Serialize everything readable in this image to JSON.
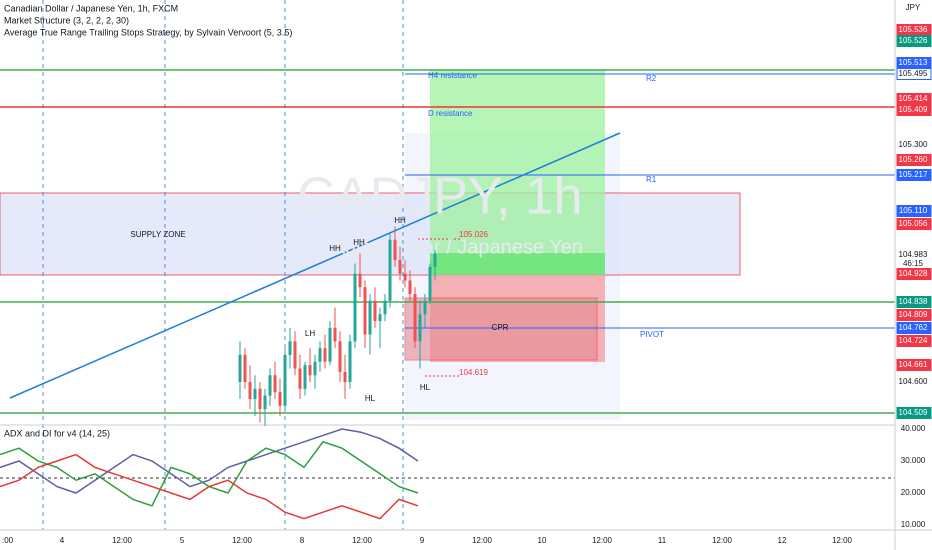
{
  "header": {
    "title": "Canadian Dollar / Japanese Yen, 1h, FXCM",
    "studies": [
      "Market Structure (3, 2, 2, 2, 30)",
      "Average True Range Trailing Stops Strategy, by Sylvain Vervoort (5, 3.5)"
    ]
  },
  "watermark": {
    "symbol": "CADJPY, 1h",
    "name": "Canadian Dollar / Japanese Yen"
  },
  "annotations": [
    "SUPPLY ZONE",
    "H4 resistance",
    "D resistance",
    "R2",
    "R1",
    "PIVOT",
    "CPR",
    "105.026",
    "104.619",
    "HH",
    "HH",
    "HH",
    "LH",
    "HL",
    "HL"
  ],
  "price_axis": {
    "currency": "JPY",
    "labels": [
      {
        "text": "105.536",
        "color": "#f23645"
      },
      {
        "text": "105.526",
        "color": "#089981"
      },
      {
        "text": "105.513",
        "color": "#2962ff"
      },
      {
        "text": "105.495",
        "color": "#ffffff"
      },
      {
        "text": "105.414",
        "color": "#f23645"
      },
      {
        "text": "105.409",
        "color": "#f23645"
      },
      {
        "text": "105.300",
        "color": "none"
      },
      {
        "text": "105.260",
        "color": "#f23645"
      },
      {
        "text": "105.217",
        "color": "#2962ff"
      },
      {
        "text": "105.110",
        "color": "#2962ff"
      },
      {
        "text": "105.056",
        "color": "#f23645"
      },
      {
        "text": "104.983",
        "color": "none"
      },
      {
        "text": "46:15",
        "color": "none"
      },
      {
        "text": "104.928",
        "color": "#f23645"
      },
      {
        "text": "104.838",
        "color": "#089981"
      },
      {
        "text": "104.809",
        "color": "#f23645"
      },
      {
        "text": "104.762",
        "color": "#2962ff"
      },
      {
        "text": "104.724",
        "color": "#f23645"
      },
      {
        "text": "104.661",
        "color": "#f23645"
      },
      {
        "text": "104.600",
        "color": "none"
      },
      {
        "text": "104.509",
        "color": "#089981"
      }
    ]
  },
  "time_axis": [
    ":00",
    "4",
    "12:00",
    "5",
    "12:00",
    "8",
    "12:00",
    "9",
    "12:00",
    "10",
    "12:00",
    "11",
    "12:00",
    "12",
    "12:00"
  ],
  "candles": [
    [
      104.6,
      104.72,
      104.55,
      104.68
    ],
    [
      104.68,
      104.7,
      104.58,
      104.6
    ],
    [
      104.6,
      104.65,
      104.52,
      104.55
    ],
    [
      104.55,
      104.62,
      104.5,
      104.58
    ],
    [
      104.58,
      104.6,
      104.48,
      104.52
    ],
    [
      104.52,
      104.58,
      104.47,
      104.56
    ],
    [
      104.56,
      104.64,
      104.53,
      104.62
    ],
    [
      104.62,
      104.66,
      104.55,
      104.57
    ],
    [
      104.57,
      104.61,
      104.5,
      104.53
    ],
    [
      104.53,
      104.7,
      104.52,
      104.68
    ],
    [
      104.68,
      104.76,
      104.64,
      104.72
    ],
    [
      104.72,
      104.75,
      104.62,
      104.64
    ],
    [
      104.64,
      104.68,
      104.55,
      104.58
    ],
    [
      104.58,
      104.66,
      104.56,
      104.65
    ],
    [
      104.65,
      104.7,
      104.6,
      104.62
    ],
    [
      104.62,
      104.68,
      104.58,
      104.66
    ],
    [
      104.66,
      104.72,
      104.63,
      104.7
    ],
    [
      104.7,
      104.74,
      104.64,
      104.66
    ],
    [
      104.66,
      104.78,
      104.65,
      104.76
    ],
    [
      104.76,
      104.82,
      104.7,
      104.72
    ],
    [
      104.72,
      104.75,
      104.6,
      104.63
    ],
    [
      104.63,
      104.68,
      104.55,
      104.6
    ],
    [
      104.6,
      104.74,
      104.58,
      104.72
    ],
    [
      104.72,
      104.95,
      104.7,
      104.92
    ],
    [
      104.92,
      104.98,
      104.85,
      104.88
    ],
    [
      104.88,
      104.9,
      104.7,
      104.74
    ],
    [
      104.74,
      104.86,
      104.68,
      104.84
    ],
    [
      104.84,
      104.88,
      104.76,
      104.78
    ],
    [
      104.78,
      104.82,
      104.7,
      104.8
    ],
    [
      104.8,
      104.86,
      104.78,
      104.84
    ],
    [
      104.84,
      105.04,
      104.82,
      105.02
    ],
    [
      105.02,
      105.06,
      104.94,
      104.96
    ],
    [
      104.96,
      105.0,
      104.9,
      104.92
    ],
    [
      104.92,
      104.96,
      104.88,
      104.9
    ],
    [
      104.9,
      104.93,
      104.84,
      104.86
    ],
    [
      104.86,
      104.88,
      104.7,
      104.72
    ],
    [
      104.72,
      104.84,
      104.64,
      104.8
    ],
    [
      104.8,
      104.86,
      104.76,
      104.84
    ],
    [
      104.84,
      104.95,
      104.83,
      104.94
    ],
    [
      104.94,
      104.99,
      104.9,
      104.98
    ]
  ],
  "indicator": {
    "title": "ADX and DI for v4 (14, 25)",
    "axis_labels": [
      "40.000",
      "30.000",
      "20.000",
      "10.000"
    ],
    "series": [
      {
        "color": "#5b5fa8",
        "values": [
          28,
          30,
          26,
          22,
          20,
          24,
          28,
          32,
          30,
          26,
          22,
          24,
          28,
          30,
          32,
          34,
          36,
          38,
          40,
          39,
          37,
          34,
          30
        ]
      },
      {
        "color": "#2e9e3c",
        "values": [
          32,
          34,
          30,
          28,
          24,
          26,
          22,
          18,
          16,
          28,
          26,
          22,
          20,
          30,
          34,
          32,
          28,
          36,
          34,
          30,
          26,
          22,
          20
        ]
      },
      {
        "color": "#e53935",
        "values": [
          22,
          24,
          28,
          30,
          32,
          28,
          26,
          24,
          22,
          20,
          18,
          22,
          24,
          20,
          18,
          14,
          12,
          14,
          16,
          14,
          12,
          18,
          16
        ]
      }
    ]
  }
}
